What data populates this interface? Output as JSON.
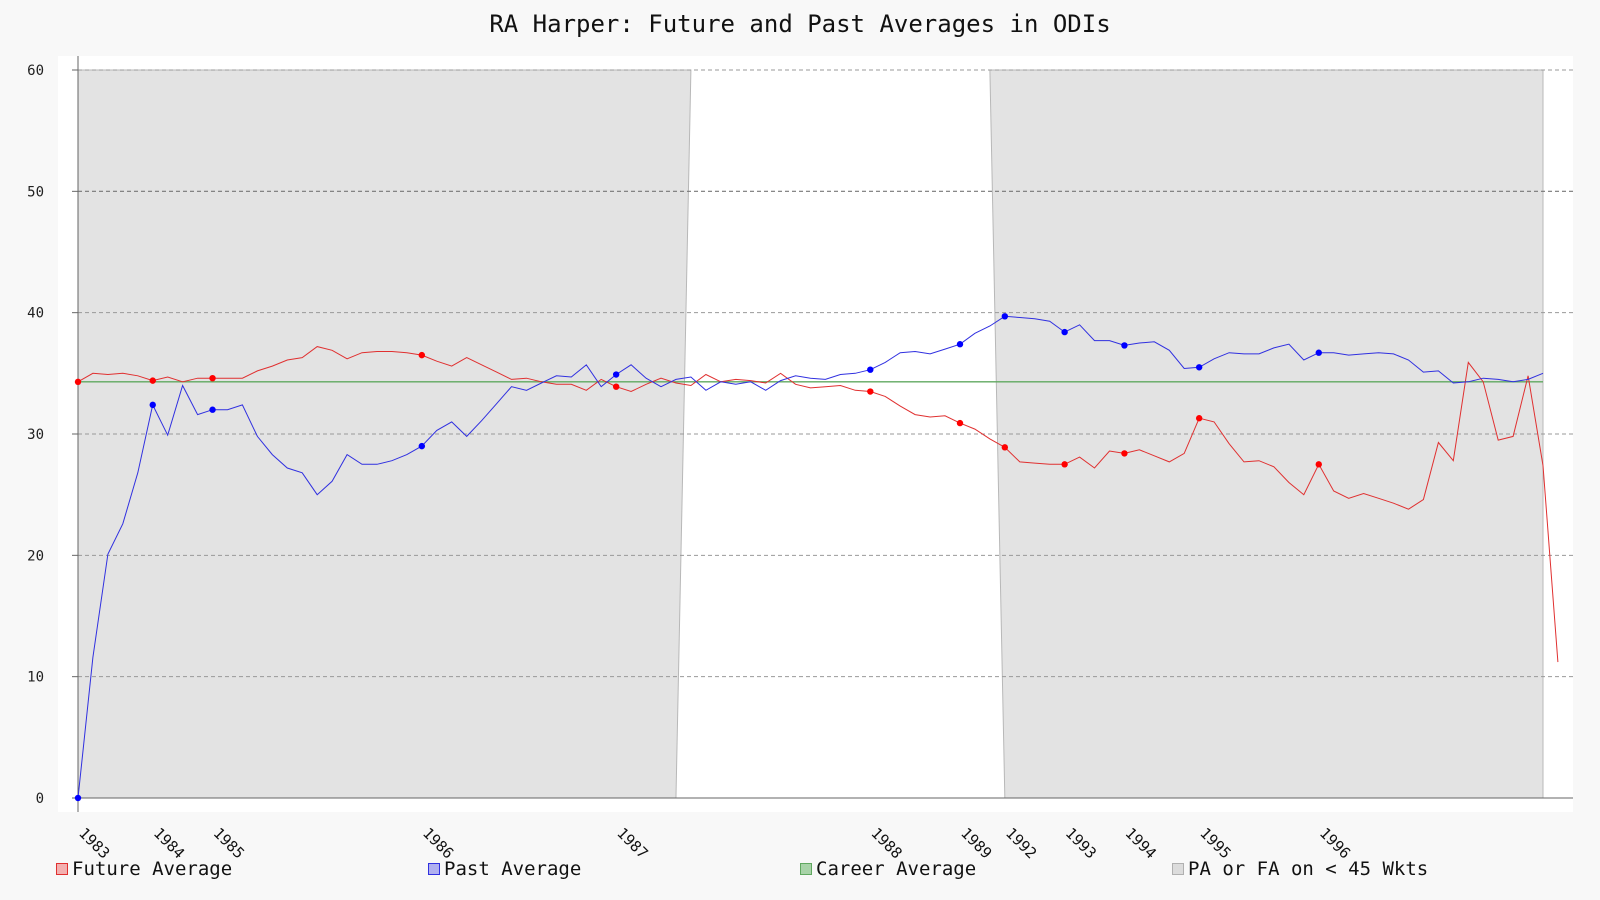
{
  "chart_data": {
    "type": "line",
    "title": "RA Harper: Future and Past Averages in ODIs",
    "xlabel": "",
    "ylabel": "",
    "ylim": [
      0,
      60
    ],
    "yticks": [
      0,
      10,
      20,
      30,
      40,
      50,
      60
    ],
    "grid": true,
    "legend_position": "bottom",
    "x_count": 99,
    "colors": {
      "future": "#e03030",
      "past": "#3030e0",
      "career": "#60a860",
      "band": "#e3e3e3"
    },
    "year_ticks": [
      {
        "label": "1983",
        "index": 0
      },
      {
        "label": "1984",
        "index": 5
      },
      {
        "label": "1985",
        "index": 9
      },
      {
        "label": "1986",
        "index": 23
      },
      {
        "label": "1987",
        "index": 36
      },
      {
        "label": "1988",
        "index": 53
      },
      {
        "label": "1989",
        "index": 59
      },
      {
        "label": "1992",
        "index": 62
      },
      {
        "label": "1993",
        "index": 66
      },
      {
        "label": "1994",
        "index": 70
      },
      {
        "label": "1995",
        "index": 75
      },
      {
        "label": "1996",
        "index": 83
      }
    ],
    "shaded_regions": [
      {
        "label": "PA or FA on < 45 Wkts",
        "top_from": 0,
        "top_to": 41,
        "bottom_from": 0,
        "bottom_to": 40,
        "ymax": 60
      },
      {
        "label": "PA or FA on < 45 Wkts",
        "top_from": 61,
        "top_to": 98,
        "bottom_from": 62,
        "bottom_to": 98,
        "ymax": 60
      }
    ],
    "series": [
      {
        "name": "Future Average",
        "key": "future",
        "values": [
          34.3,
          35.0,
          34.9,
          35.0,
          34.8,
          34.4,
          34.7,
          34.3,
          34.6,
          34.6,
          34.6,
          34.6,
          35.2,
          35.6,
          36.1,
          36.3,
          37.2,
          36.9,
          36.2,
          36.7,
          36.8,
          36.8,
          36.7,
          36.5,
          36.0,
          35.6,
          36.3,
          35.7,
          35.1,
          34.5,
          34.6,
          34.3,
          34.1,
          34.1,
          33.6,
          34.5,
          33.9,
          33.5,
          34.1,
          34.6,
          34.2,
          34.0,
          34.9,
          34.3,
          34.5,
          34.4,
          34.2,
          35.0,
          34.1,
          33.8,
          33.9,
          34.0,
          33.6,
          33.5,
          33.1,
          32.3,
          31.6,
          31.4,
          31.5,
          30.9,
          30.4,
          29.6,
          28.9,
          27.7,
          27.6,
          27.5,
          27.5,
          28.1,
          27.2,
          28.6,
          28.4,
          28.7,
          28.2,
          27.7,
          28.4,
          31.3,
          31.0,
          29.2,
          27.7,
          27.8,
          27.3,
          26.0,
          25.0,
          27.5,
          25.3,
          24.7,
          25.1,
          24.7,
          24.3,
          23.8,
          24.6,
          29.3,
          27.8,
          35.9,
          34.3,
          29.5,
          29.8,
          34.8,
          27.4,
          11.2
        ],
        "markers": [
          0,
          5,
          9,
          23,
          36,
          53,
          59,
          62,
          66,
          70,
          75,
          83
        ]
      },
      {
        "name": "Past Average",
        "key": "past",
        "values": [
          0.0,
          11.6,
          20.1,
          22.6,
          26.8,
          32.4,
          29.9,
          34.0,
          31.6,
          32.0,
          32.0,
          32.4,
          29.8,
          28.3,
          27.2,
          26.8,
          25.0,
          26.1,
          28.3,
          27.5,
          27.5,
          27.8,
          28.3,
          29.0,
          30.3,
          31.0,
          29.8,
          31.1,
          32.5,
          33.9,
          33.6,
          34.2,
          34.8,
          34.7,
          35.7,
          33.9,
          34.9,
          35.7,
          34.6,
          33.9,
          34.5,
          34.7,
          33.6,
          34.3,
          34.1,
          34.3,
          33.6,
          34.4,
          34.8,
          34.6,
          34.5,
          34.9,
          35.0,
          35.3,
          35.9,
          36.7,
          36.8,
          36.6,
          37.0,
          37.4,
          38.3,
          38.9,
          39.7,
          39.6,
          39.5,
          39.3,
          38.4,
          39.0,
          37.7,
          37.7,
          37.3,
          37.5,
          37.6,
          36.9,
          35.4,
          35.5,
          36.2,
          36.7,
          36.6,
          36.6,
          37.1,
          37.4,
          36.1,
          36.7,
          36.7,
          36.5,
          36.6,
          36.7,
          36.6,
          36.1,
          35.1,
          35.2,
          34.2,
          34.3,
          34.6,
          34.5,
          34.3,
          34.5,
          35.0
        ],
        "markers": [
          0,
          5,
          9,
          23,
          36,
          53,
          59,
          62,
          66,
          70,
          75,
          83
        ]
      },
      {
        "name": "Career Average",
        "key": "career",
        "constant": 34.3
      }
    ],
    "legend": [
      {
        "label": "Future Average",
        "key": "future"
      },
      {
        "label": "Past Average",
        "key": "past"
      },
      {
        "label": "Career Average",
        "key": "career"
      },
      {
        "label": "PA or FA on < 45 Wkts",
        "key": "band"
      }
    ]
  }
}
